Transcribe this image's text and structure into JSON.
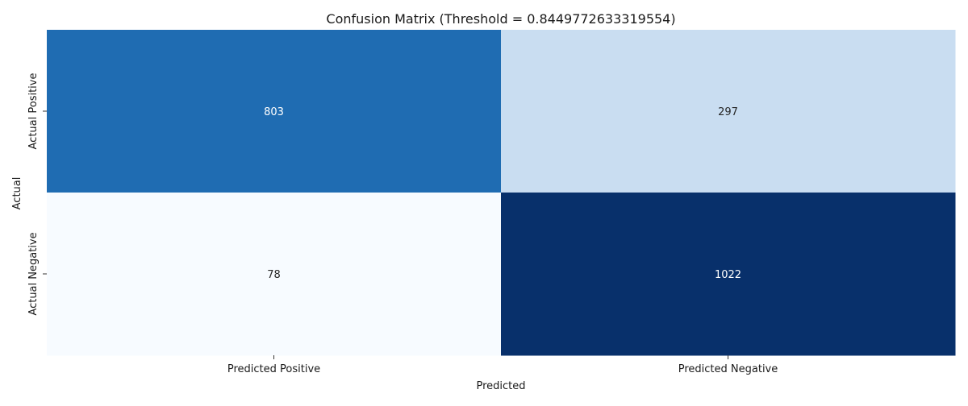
{
  "chart_data": {
    "type": "heatmap",
    "title": "Confusion Matrix (Threshold = 0.8449772633319554)",
    "xlabel": "Predicted",
    "ylabel": "Actual",
    "x_categories": [
      "Predicted Positive",
      "Predicted Negative"
    ],
    "y_categories": [
      "Actual Positive",
      "Actual Negative"
    ],
    "values": [
      [
        803,
        297
      ],
      [
        78,
        1022
      ]
    ],
    "colormap": "Blues",
    "colorbar": false,
    "value_range": [
      78,
      1022
    ],
    "cell_colors": [
      [
        "#1f6cb2",
        "#c9ddf1"
      ],
      [
        "#f7fbff",
        "#08306b"
      ]
    ],
    "annotation_colors": [
      [
        "#ffffff",
        "#262626"
      ],
      [
        "#262626",
        "#ffffff"
      ]
    ]
  }
}
